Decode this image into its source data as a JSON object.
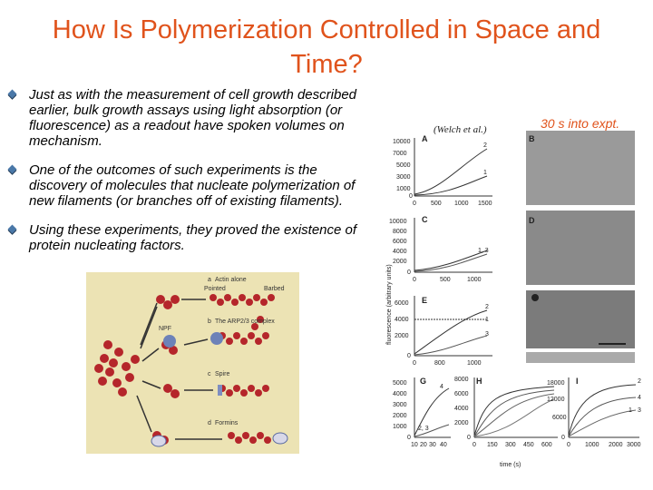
{
  "title": "How Is Polymerization Controlled in Space and Time?",
  "bullets": [
    "Just as with the measurement of cell growth described earlier, bulk growth assays using light absorption (or fluorescence) as a readout have spoken volumes on mechanism.",
    "One of the outcomes of such experiments is the discovery of molecules that nucleate polymerization of new filaments (or branches off of existing filaments).",
    "Using these experiments, they proved the existence of protein nucleating factors."
  ],
  "citation": "(Welch et al.)",
  "experiment_label": "30 s into expt.",
  "figure": {
    "y_axis_label": "fluorescence (arbitrary units)",
    "x_axis_label": "time (s)",
    "panels": {
      "A": {
        "label": "A",
        "yticks": [
          "10000",
          "7000",
          "5000",
          "3000",
          "1000",
          "0"
        ],
        "xticks": [
          "0",
          "500",
          "1000",
          "1500"
        ],
        "curve_labels": [
          "2",
          "1"
        ]
      },
      "C": {
        "label": "C",
        "yticks": [
          "10000",
          "8000",
          "6000",
          "4000",
          "2000",
          "0"
        ],
        "xticks": [
          "0",
          "500",
          "1000"
        ],
        "curve_labels": [
          "1, 3"
        ]
      },
      "E": {
        "label": "E",
        "yticks": [
          "6000",
          "4000",
          "2000",
          "0"
        ],
        "xticks": [
          "0",
          "800",
          "1000"
        ],
        "curve_labels": [
          "2",
          "1",
          "3"
        ]
      },
      "G": {
        "label": "G",
        "yticks": [
          "5000",
          "4000",
          "3000",
          "2000",
          "1000",
          "0"
        ],
        "xticks": [
          "10",
          "20",
          "30",
          "40"
        ],
        "curve_labels": [
          "4",
          "2, 3"
        ]
      },
      "H": {
        "label": "H",
        "yticks": [
          "8000",
          "6000",
          "4000",
          "2000",
          "0"
        ],
        "xticks": [
          "0",
          "150",
          "300",
          "450",
          "600"
        ]
      },
      "I": {
        "label": "I",
        "yticks": [
          "18000",
          "12000",
          "6000",
          "0"
        ],
        "xticks": [
          "0",
          "1000",
          "2000",
          "3000"
        ],
        "curve_labels": [
          "2",
          "4",
          "1",
          "3"
        ]
      }
    },
    "micrographs": [
      "B",
      "D"
    ]
  },
  "illustration": {
    "rows": [
      {
        "letter": "a",
        "text": "Actin alone"
      },
      {
        "letter": "b",
        "text": "The ARP2/3 complex"
      },
      {
        "letter": "c",
        "text": "Spire"
      },
      {
        "letter": "d",
        "text": "Formins"
      }
    ],
    "end_labels": [
      "Pointed",
      "Barbed"
    ],
    "npf_label": "NPF"
  }
}
